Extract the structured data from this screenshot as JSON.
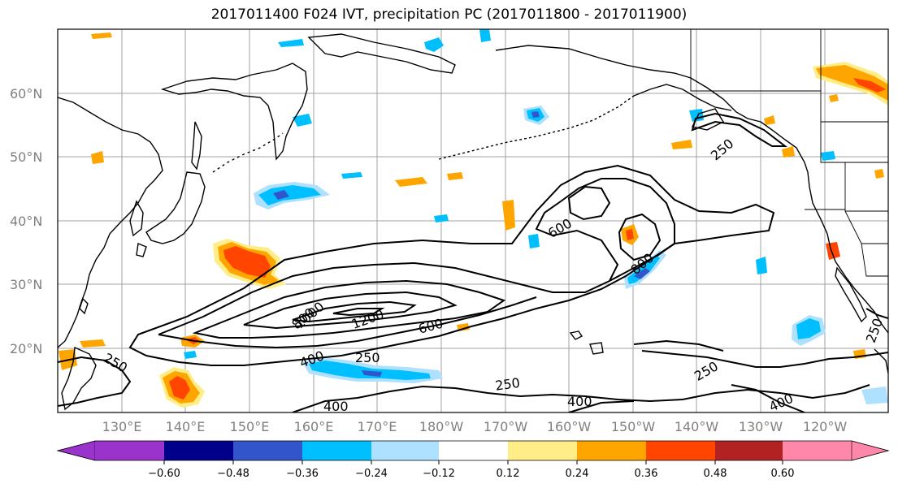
{
  "title": "2017011400 F024 IVT, precipitation PC (2017011800 - 2017011900)",
  "map": {
    "lat_labels": [
      "60°N",
      "50°N",
      "40°N",
      "30°N",
      "20°N"
    ],
    "lon_labels": [
      "130°E",
      "140°E",
      "150°E",
      "160°E",
      "170°E",
      "180°W",
      "170°W",
      "160°W",
      "150°W",
      "140°W",
      "130°W",
      "120°W"
    ],
    "extent": {
      "lon_min": 120,
      "lon_max": 250,
      "lat_min": 10,
      "lat_max": 70
    }
  },
  "ivt_contours": {
    "levels": [
      250,
      400,
      600,
      800,
      1000,
      1200
    ],
    "labels": [
      "250",
      "400",
      "600",
      "800",
      "1000",
      "1200",
      "250",
      "400",
      "250",
      "250",
      "400",
      "600",
      "800",
      "250",
      "400",
      "250"
    ]
  },
  "colorbar": {
    "ticks": [
      "−0.60",
      "−0.48",
      "−0.36",
      "−0.24",
      "−0.12",
      "0.12",
      "0.24",
      "0.36",
      "0.48",
      "0.60"
    ],
    "colors": [
      "#9933cc",
      "#00008b",
      "#3355cc",
      "#00bfff",
      "#aee0ff",
      "#ffffff",
      "#ffee88",
      "#ffa500",
      "#ff4500",
      "#b22222",
      "#ff88aa"
    ]
  }
}
